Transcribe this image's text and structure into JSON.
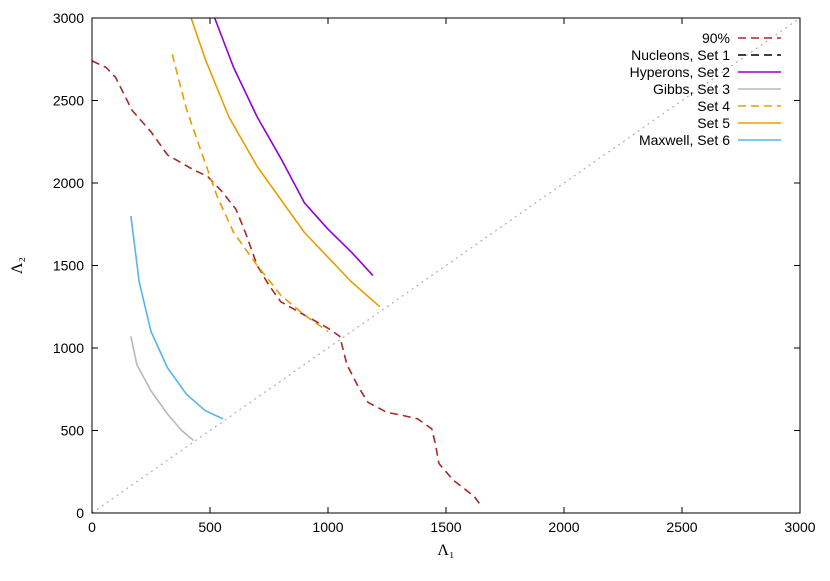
{
  "chart_data": {
    "type": "line",
    "xlabel": "Λ₁",
    "ylabel": "Λ₂",
    "xlim": [
      0,
      3000
    ],
    "ylim": [
      0,
      3000
    ],
    "xticks": [
      0,
      500,
      1000,
      1500,
      2000,
      2500,
      3000
    ],
    "yticks": [
      0,
      500,
      1000,
      1500,
      2000,
      2500,
      3000
    ],
    "grid": false,
    "legend_position": "top-right",
    "reference_line": {
      "style": "dotted",
      "color": "#b0b0b0",
      "points": [
        [
          0,
          0
        ],
        [
          3000,
          3000
        ]
      ]
    },
    "series": [
      {
        "name": "90%",
        "color": "#a52a2a",
        "dash": "dashed",
        "points": [
          [
            0,
            2740
          ],
          [
            60,
            2700
          ],
          [
            100,
            2640
          ],
          [
            170,
            2440
          ],
          [
            250,
            2310
          ],
          [
            320,
            2170
          ],
          [
            430,
            2080
          ],
          [
            490,
            2040
          ],
          [
            550,
            1950
          ],
          [
            610,
            1840
          ],
          [
            650,
            1700
          ],
          [
            700,
            1500
          ],
          [
            750,
            1380
          ],
          [
            800,
            1280
          ],
          [
            900,
            1200
          ],
          [
            1000,
            1120
          ],
          [
            1050,
            1070
          ],
          [
            1080,
            900
          ],
          [
            1130,
            760
          ],
          [
            1170,
            670
          ],
          [
            1250,
            610
          ],
          [
            1320,
            590
          ],
          [
            1380,
            570
          ],
          [
            1440,
            510
          ],
          [
            1455,
            420
          ],
          [
            1470,
            300
          ],
          [
            1530,
            200
          ],
          [
            1620,
            100
          ],
          [
            1650,
            40
          ]
        ]
      },
      {
        "name": "Nucleons, Set 1",
        "color": "#000000",
        "dash": "dashed",
        "points": []
      },
      {
        "name": "Hyperons, Set 2",
        "color": "#9400d3",
        "dash": "solid",
        "points": [
          [
            520,
            3000
          ],
          [
            600,
            2700
          ],
          [
            700,
            2400
          ],
          [
            800,
            2150
          ],
          [
            900,
            1880
          ],
          [
            1000,
            1720
          ],
          [
            1100,
            1580
          ],
          [
            1190,
            1440
          ]
        ]
      },
      {
        "name": "Gibbs, Set 3",
        "color": "#b8b8b8",
        "dash": "solid",
        "points": [
          [
            165,
            1070
          ],
          [
            190,
            900
          ],
          [
            250,
            740
          ],
          [
            320,
            600
          ],
          [
            380,
            500
          ],
          [
            430,
            440
          ]
        ]
      },
      {
        "name": "Set 4",
        "color": "#e69f00",
        "dash": "dashed",
        "points": [
          [
            340,
            2780
          ],
          [
            400,
            2450
          ],
          [
            460,
            2200
          ],
          [
            530,
            1920
          ],
          [
            600,
            1700
          ],
          [
            700,
            1500
          ],
          [
            800,
            1320
          ],
          [
            900,
            1200
          ],
          [
            1000,
            1100
          ]
        ]
      },
      {
        "name": "Set 5",
        "color": "#e69f00",
        "dash": "solid",
        "points": [
          [
            420,
            3000
          ],
          [
            480,
            2750
          ],
          [
            580,
            2400
          ],
          [
            700,
            2100
          ],
          [
            800,
            1900
          ],
          [
            900,
            1700
          ],
          [
            1000,
            1550
          ],
          [
            1100,
            1400
          ],
          [
            1220,
            1250
          ]
        ]
      },
      {
        "name": "Maxwell, Set 6",
        "color": "#56b4e9",
        "dash": "solid",
        "points": [
          [
            165,
            1800
          ],
          [
            200,
            1400
          ],
          [
            250,
            1100
          ],
          [
            320,
            880
          ],
          [
            400,
            720
          ],
          [
            480,
            620
          ],
          [
            555,
            570
          ]
        ]
      }
    ]
  }
}
